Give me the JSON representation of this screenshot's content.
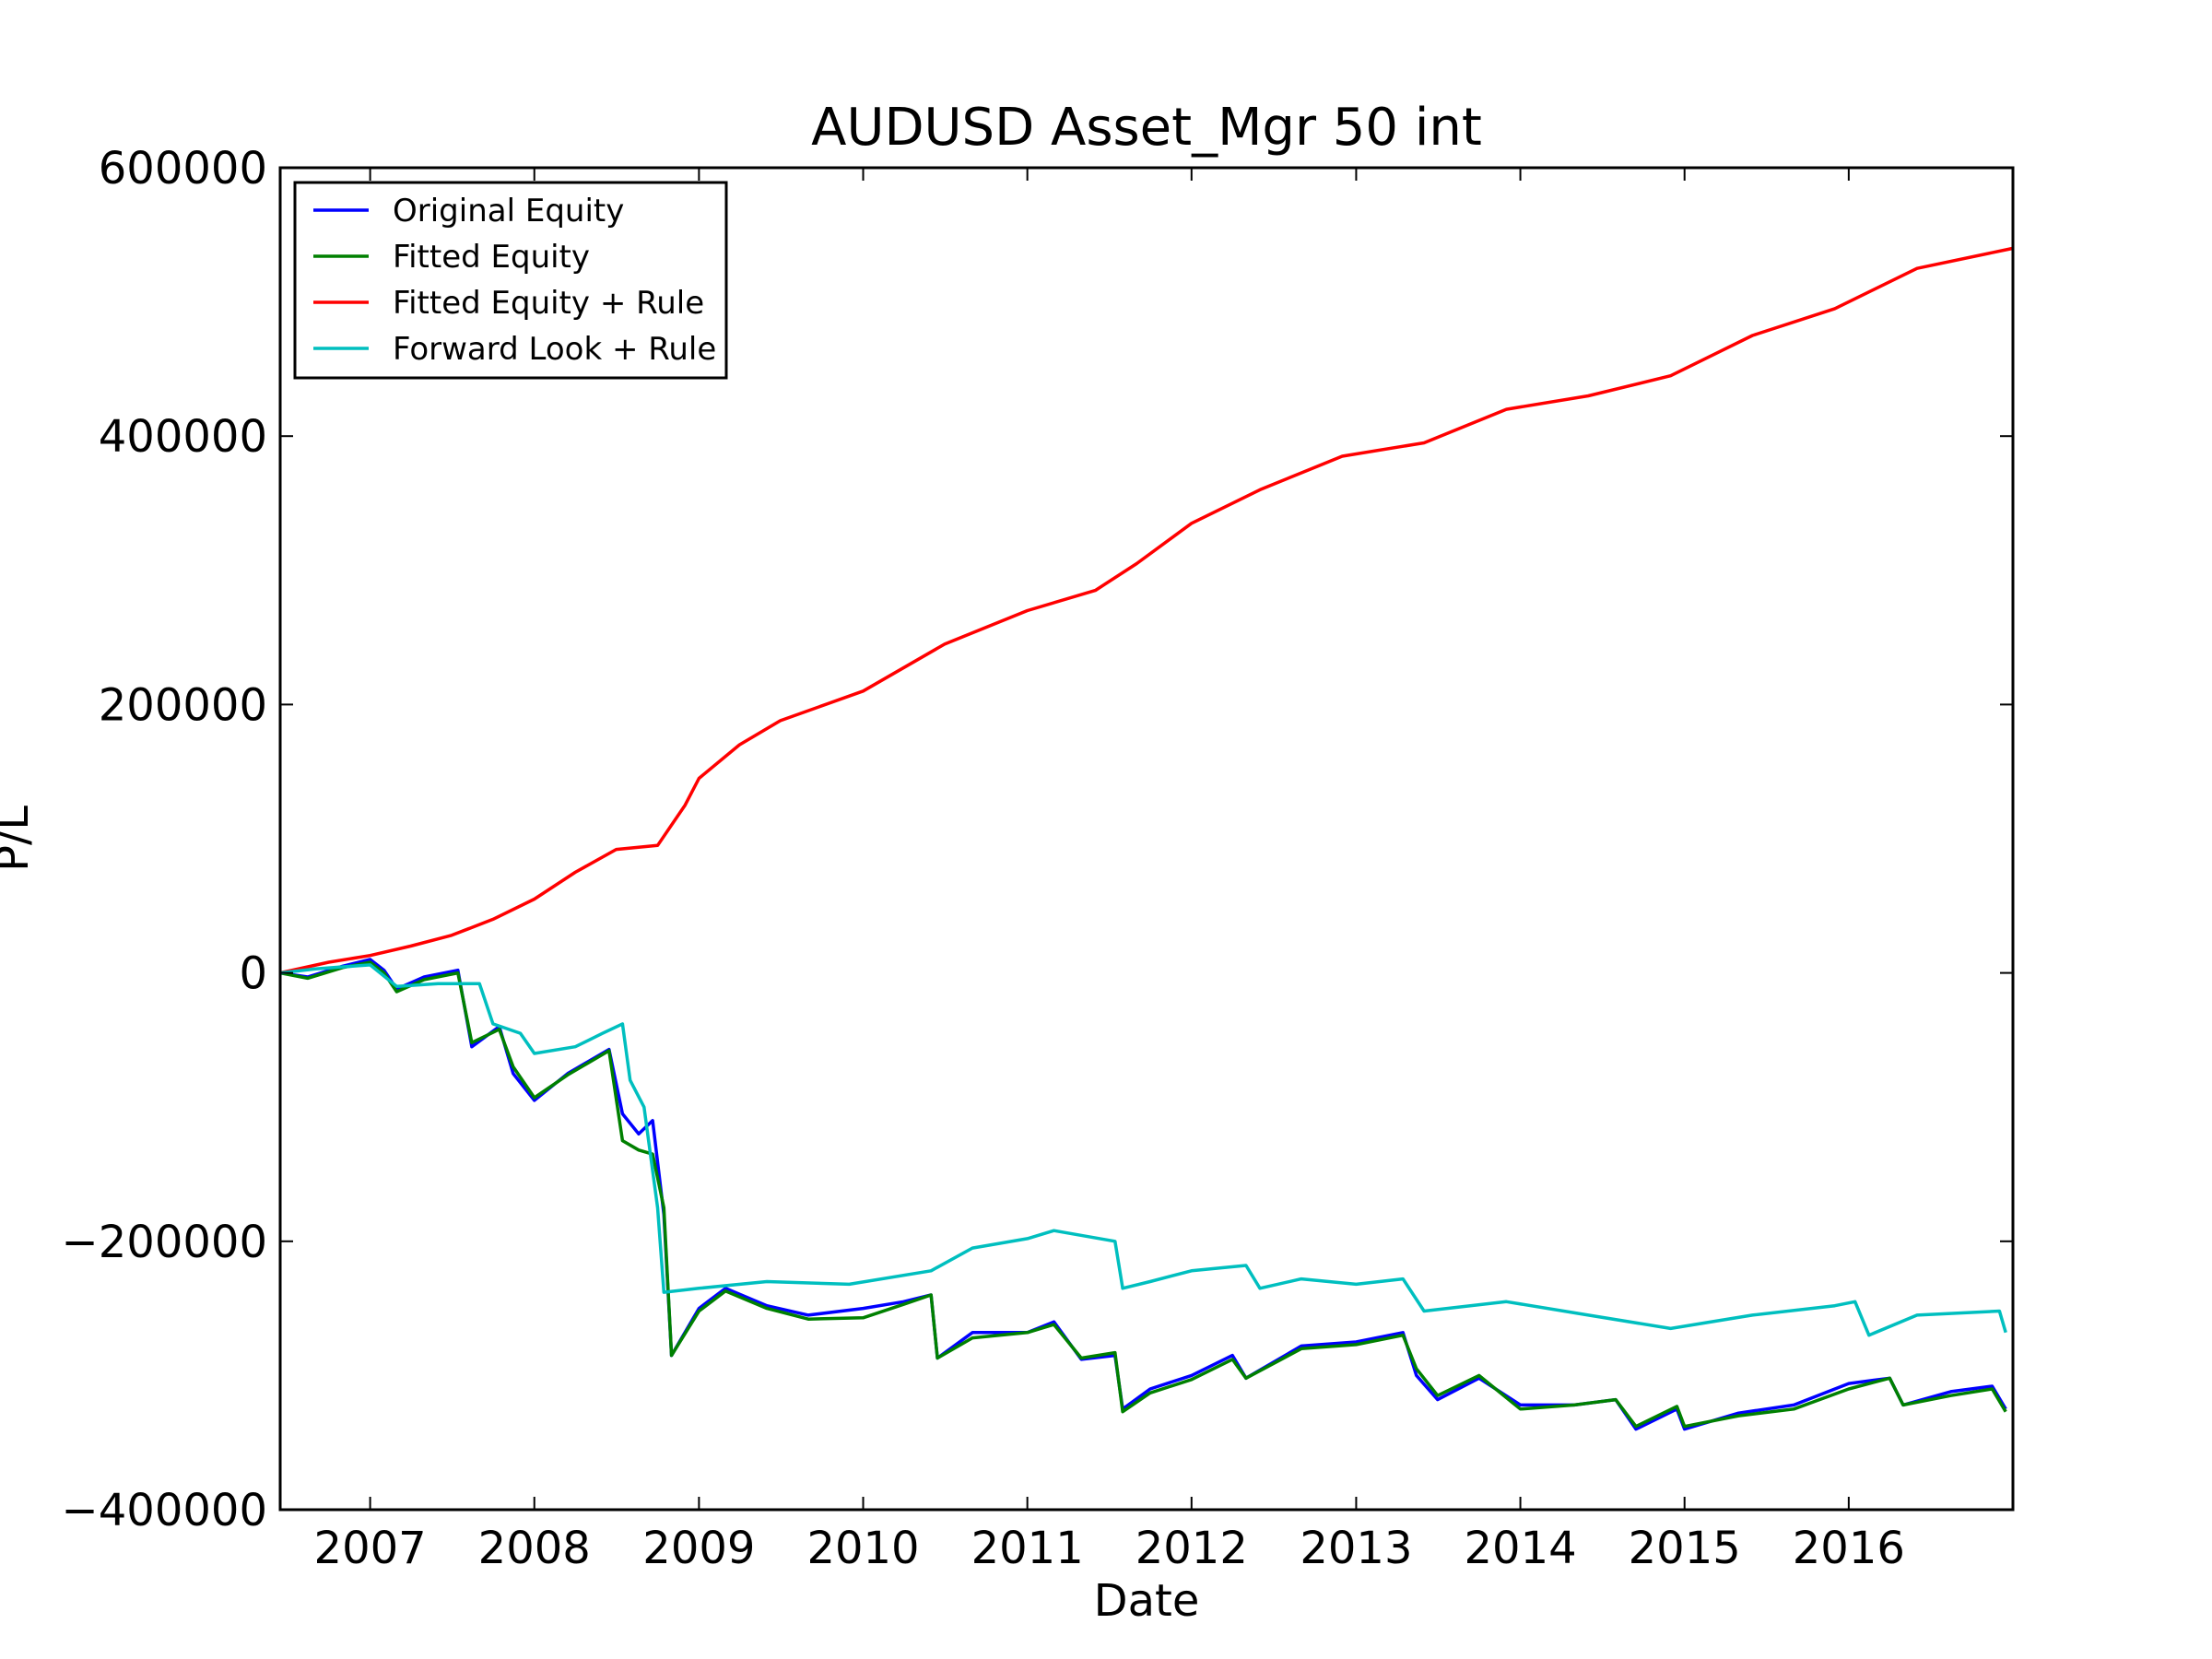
{
  "chart_data": {
    "type": "line",
    "title": "AUDUSD Asset_Mgr 50 int",
    "xlabel": "Date",
    "ylabel": "P/L",
    "xlim": [
      "2006-06-15",
      "2016-12-31"
    ],
    "ylim": [
      -400000,
      600000
    ],
    "x_ticks": [
      "2007",
      "2008",
      "2009",
      "2010",
      "2011",
      "2012",
      "2013",
      "2014",
      "2015",
      "2016"
    ],
    "y_ticks": [
      {
        "value": -400000,
        "label": "−400000"
      },
      {
        "value": -200000,
        "label": "−200000"
      },
      {
        "value": 0,
        "label": "0"
      },
      {
        "value": 200000,
        "label": "200000"
      },
      {
        "value": 400000,
        "label": "400000"
      },
      {
        "value": 600000,
        "label": "600000"
      }
    ],
    "grid": false,
    "legend_position": "top-left",
    "series": [
      {
        "name": "Original Equity",
        "color": "#0000ff",
        "points": [
          [
            "2006-06-15",
            0
          ],
          [
            "2006-08-15",
            -3000
          ],
          [
            "2006-11-01",
            5000
          ],
          [
            "2007-01-01",
            10000
          ],
          [
            "2007-02-01",
            2000
          ],
          [
            "2007-03-01",
            -12000
          ],
          [
            "2007-05-01",
            -3000
          ],
          [
            "2007-07-15",
            2000
          ],
          [
            "2007-08-15",
            -55000
          ],
          [
            "2007-10-15",
            -40000
          ],
          [
            "2007-11-15",
            -75000
          ],
          [
            "2008-01-01",
            -95000
          ],
          [
            "2008-03-15",
            -75000
          ],
          [
            "2008-06-15",
            -57000
          ],
          [
            "2008-07-15",
            -105000
          ],
          [
            "2008-08-20",
            -120000
          ],
          [
            "2008-09-20",
            -110000
          ],
          [
            "2008-10-15",
            -180000
          ],
          [
            "2008-11-01",
            -285000
          ],
          [
            "2009-01-01",
            -250000
          ],
          [
            "2009-03-01",
            -235000
          ],
          [
            "2009-06-01",
            -248000
          ],
          [
            "2009-09-01",
            -255000
          ],
          [
            "2010-01-01",
            -250000
          ],
          [
            "2010-04-01",
            -245000
          ],
          [
            "2010-06-01",
            -240000
          ],
          [
            "2010-06-15",
            -287000
          ],
          [
            "2010-09-01",
            -268000
          ],
          [
            "2011-01-01",
            -268000
          ],
          [
            "2011-03-01",
            -260000
          ],
          [
            "2011-05-01",
            -288000
          ],
          [
            "2011-07-15",
            -285000
          ],
          [
            "2011-08-01",
            -325000
          ],
          [
            "2011-10-01",
            -310000
          ],
          [
            "2012-01-01",
            -300000
          ],
          [
            "2012-04-01",
            -285000
          ],
          [
            "2012-05-01",
            -302000
          ],
          [
            "2012-09-01",
            -278000
          ],
          [
            "2013-01-01",
            -275000
          ],
          [
            "2013-04-15",
            -268000
          ],
          [
            "2013-05-15",
            -300000
          ],
          [
            "2013-07-01",
            -318000
          ],
          [
            "2013-10-01",
            -302000
          ],
          [
            "2014-01-01",
            -322000
          ],
          [
            "2014-05-01",
            -322000
          ],
          [
            "2014-08-01",
            -318000
          ],
          [
            "2014-09-15",
            -340000
          ],
          [
            "2014-12-15",
            -325000
          ],
          [
            "2015-01-01",
            -340000
          ],
          [
            "2015-05-01",
            -328000
          ],
          [
            "2015-09-01",
            -322000
          ],
          [
            "2016-01-01",
            -306000
          ],
          [
            "2016-04-01",
            -302000
          ],
          [
            "2016-05-01",
            -322000
          ],
          [
            "2016-08-15",
            -312000
          ],
          [
            "2016-11-15",
            -308000
          ],
          [
            "2016-12-15",
            -325000
          ]
        ]
      },
      {
        "name": "Fitted Equity",
        "color": "#008000",
        "points": [
          [
            "2006-06-15",
            0
          ],
          [
            "2006-08-15",
            -4000
          ],
          [
            "2006-11-01",
            4000
          ],
          [
            "2007-01-01",
            8000
          ],
          [
            "2007-02-01",
            0
          ],
          [
            "2007-03-01",
            -14000
          ],
          [
            "2007-05-01",
            -5000
          ],
          [
            "2007-07-15",
            0
          ],
          [
            "2007-08-15",
            -52000
          ],
          [
            "2007-10-15",
            -42000
          ],
          [
            "2007-11-15",
            -70000
          ],
          [
            "2008-01-01",
            -93000
          ],
          [
            "2008-03-15",
            -76000
          ],
          [
            "2008-06-15",
            -58000
          ],
          [
            "2008-07-15",
            -125000
          ],
          [
            "2008-08-20",
            -132000
          ],
          [
            "2008-09-20",
            -135000
          ],
          [
            "2008-10-15",
            -175000
          ],
          [
            "2008-11-01",
            -285000
          ],
          [
            "2009-01-01",
            -252000
          ],
          [
            "2009-03-01",
            -237000
          ],
          [
            "2009-06-01",
            -250000
          ],
          [
            "2009-09-01",
            -258000
          ],
          [
            "2010-01-01",
            -257000
          ],
          [
            "2010-04-01",
            -247000
          ],
          [
            "2010-06-01",
            -240000
          ],
          [
            "2010-06-15",
            -287000
          ],
          [
            "2010-09-01",
            -272000
          ],
          [
            "2011-01-01",
            -268000
          ],
          [
            "2011-03-01",
            -262000
          ],
          [
            "2011-05-01",
            -287000
          ],
          [
            "2011-07-15",
            -283000
          ],
          [
            "2011-08-01",
            -327000
          ],
          [
            "2011-10-01",
            -313000
          ],
          [
            "2012-01-01",
            -303000
          ],
          [
            "2012-04-01",
            -288000
          ],
          [
            "2012-05-01",
            -302000
          ],
          [
            "2012-09-01",
            -280000
          ],
          [
            "2013-01-01",
            -277000
          ],
          [
            "2013-04-15",
            -270000
          ],
          [
            "2013-05-15",
            -295000
          ],
          [
            "2013-07-01",
            -315000
          ],
          [
            "2013-10-01",
            -300000
          ],
          [
            "2014-01-01",
            -325000
          ],
          [
            "2014-05-01",
            -322000
          ],
          [
            "2014-08-01",
            -318000
          ],
          [
            "2014-09-15",
            -338000
          ],
          [
            "2014-12-15",
            -323000
          ],
          [
            "2015-01-01",
            -338000
          ],
          [
            "2015-05-01",
            -330000
          ],
          [
            "2015-09-01",
            -325000
          ],
          [
            "2016-01-01",
            -310000
          ],
          [
            "2016-04-01",
            -302000
          ],
          [
            "2016-05-01",
            -322000
          ],
          [
            "2016-08-15",
            -315000
          ],
          [
            "2016-11-15",
            -310000
          ],
          [
            "2016-12-15",
            -327000
          ]
        ]
      },
      {
        "name": "Fitted Equity + Rule",
        "color": "#ff0000",
        "points": [
          [
            "2006-06-15",
            0
          ],
          [
            "2006-10-01",
            8000
          ],
          [
            "2007-01-01",
            13000
          ],
          [
            "2007-04-01",
            20000
          ],
          [
            "2007-07-01",
            28000
          ],
          [
            "2007-10-01",
            40000
          ],
          [
            "2008-01-01",
            55000
          ],
          [
            "2008-04-01",
            75000
          ],
          [
            "2008-07-01",
            92000
          ],
          [
            "2008-10-01",
            95000
          ],
          [
            "2008-12-01",
            125000
          ],
          [
            "2009-01-01",
            145000
          ],
          [
            "2009-04-01",
            170000
          ],
          [
            "2009-07-01",
            188000
          ],
          [
            "2010-01-01",
            210000
          ],
          [
            "2010-07-01",
            245000
          ],
          [
            "2011-01-01",
            270000
          ],
          [
            "2011-06-01",
            285000
          ],
          [
            "2011-09-01",
            305000
          ],
          [
            "2012-01-01",
            335000
          ],
          [
            "2012-06-01",
            360000
          ],
          [
            "2012-12-01",
            385000
          ],
          [
            "2013-06-01",
            395000
          ],
          [
            "2013-12-01",
            420000
          ],
          [
            "2014-06-01",
            430000
          ],
          [
            "2014-12-01",
            445000
          ],
          [
            "2015-06-01",
            475000
          ],
          [
            "2015-12-01",
            495000
          ],
          [
            "2016-06-01",
            525000
          ],
          [
            "2016-12-31",
            540000
          ]
        ]
      },
      {
        "name": "Forward Look + Rule",
        "color": "#00bfbf",
        "points": [
          [
            "2006-06-15",
            0
          ],
          [
            "2006-09-01",
            3000
          ],
          [
            "2007-01-01",
            6000
          ],
          [
            "2007-03-01",
            -10000
          ],
          [
            "2007-06-01",
            -8000
          ],
          [
            "2007-09-01",
            -8000
          ],
          [
            "2007-10-01",
            -38000
          ],
          [
            "2007-12-01",
            -45000
          ],
          [
            "2008-01-01",
            -60000
          ],
          [
            "2008-04-01",
            -55000
          ],
          [
            "2008-06-01",
            -45000
          ],
          [
            "2008-07-15",
            -38000
          ],
          [
            "2008-08-01",
            -80000
          ],
          [
            "2008-09-01",
            -100000
          ],
          [
            "2008-10-01",
            -175000
          ],
          [
            "2008-10-15",
            -238000
          ],
          [
            "2009-01-01",
            -235000
          ],
          [
            "2009-06-01",
            -230000
          ],
          [
            "2009-12-01",
            -232000
          ],
          [
            "2010-06-01",
            -222000
          ],
          [
            "2010-09-01",
            -205000
          ],
          [
            "2011-01-01",
            -198000
          ],
          [
            "2011-03-01",
            -192000
          ],
          [
            "2011-07-15",
            -200000
          ],
          [
            "2011-08-01",
            -235000
          ],
          [
            "2011-10-01",
            -230000
          ],
          [
            "2012-01-01",
            -222000
          ],
          [
            "2012-05-01",
            -218000
          ],
          [
            "2012-06-01",
            -235000
          ],
          [
            "2012-09-01",
            -228000
          ],
          [
            "2013-01-01",
            -232000
          ],
          [
            "2013-04-15",
            -228000
          ],
          [
            "2013-06-01",
            -252000
          ],
          [
            "2013-12-01",
            -245000
          ],
          [
            "2014-06-01",
            -255000
          ],
          [
            "2014-12-01",
            -265000
          ],
          [
            "2015-06-01",
            -255000
          ],
          [
            "2015-12-01",
            -248000
          ],
          [
            "2016-01-15",
            -245000
          ],
          [
            "2016-02-15",
            -270000
          ],
          [
            "2016-06-01",
            -255000
          ],
          [
            "2016-12-01",
            -252000
          ],
          [
            "2016-12-15",
            -268000
          ]
        ]
      }
    ]
  }
}
